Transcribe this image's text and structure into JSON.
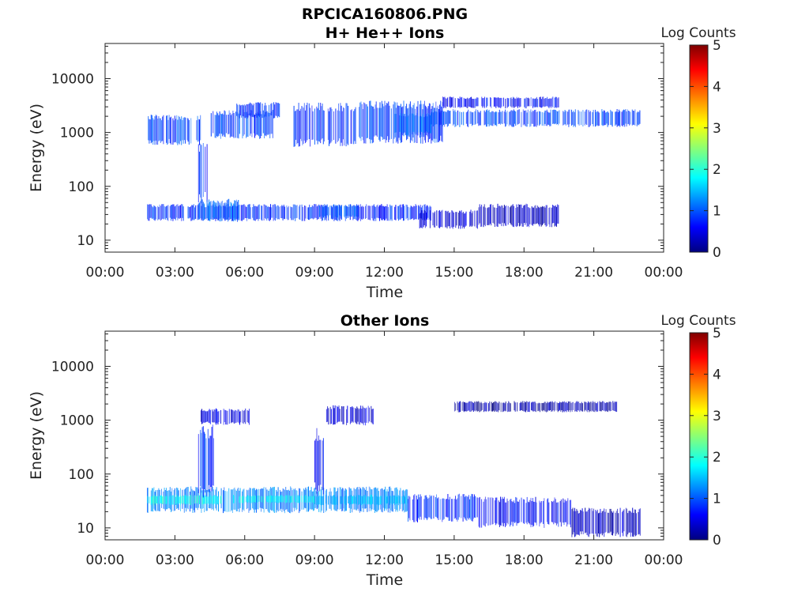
{
  "figure_title": "RPCICA160806.PNG",
  "colors": {
    "axis": "#222222",
    "colormap": [
      "#00007f",
      "#0000ff",
      "#00ffff",
      "#ffff00",
      "#ff0000",
      "#7f0000"
    ]
  },
  "chart_data": [
    {
      "type": "heatmap",
      "title": "H+ He++ Ions",
      "xlabel": "Time",
      "ylabel": "Energy (eV)",
      "yscale": "log",
      "ylim": [
        6,
        45000
      ],
      "xlim": [
        0,
        24
      ],
      "x_ticks": [
        "00:00",
        "03:00",
        "06:00",
        "09:00",
        "12:00",
        "15:00",
        "18:00",
        "21:00",
        "00:00"
      ],
      "y_ticks": [
        "10",
        "100",
        "1000",
        "10000"
      ],
      "colorbar": {
        "label": "Log Counts",
        "range": [
          0,
          5
        ],
        "ticks": [
          "0",
          "1",
          "2",
          "3",
          "4",
          "5"
        ]
      },
      "bands": [
        {
          "t_start": 1.8,
          "t_end": 4.1,
          "e_low": 700,
          "e_high": 2000,
          "log_counts": 0.9
        },
        {
          "t_start": 4.5,
          "t_end": 7.2,
          "e_low": 900,
          "e_high": 2500,
          "log_counts": 0.9
        },
        {
          "t_start": 5.6,
          "t_end": 7.5,
          "e_low": 2000,
          "e_high": 3500,
          "log_counts": 0.8
        },
        {
          "t_start": 8.1,
          "t_end": 10.8,
          "e_low": 700,
          "e_high": 3200,
          "log_counts": 0.8
        },
        {
          "t_start": 10.9,
          "t_end": 14.5,
          "e_low": 800,
          "e_high": 3500,
          "log_counts": 0.9
        },
        {
          "t_start": 12.4,
          "t_end": 14.0,
          "e_low": 1000,
          "e_high": 2200,
          "log_counts": 1.1
        },
        {
          "t_start": 14.0,
          "t_end": 23.0,
          "e_low": 1400,
          "e_high": 2600,
          "log_counts": 0.9
        },
        {
          "t_start": 14.5,
          "t_end": 19.5,
          "e_low": 3000,
          "e_high": 4500,
          "log_counts": 0.6
        },
        {
          "t_start": 4.0,
          "t_end": 4.5,
          "e_low": 70,
          "e_high": 600,
          "log_counts": 0.8
        },
        {
          "t_start": 1.8,
          "t_end": 14.0,
          "e_low": 25,
          "e_high": 45,
          "log_counts": 0.8
        },
        {
          "t_start": 4.0,
          "t_end": 5.8,
          "e_low": 25,
          "e_high": 55,
          "log_counts": 1.1
        },
        {
          "t_start": 9.2,
          "t_end": 10.9,
          "e_low": 28,
          "e_high": 45,
          "log_counts": 1.0
        },
        {
          "t_start": 13.5,
          "t_end": 16.0,
          "e_low": 18,
          "e_high": 35,
          "log_counts": 0.4
        },
        {
          "t_start": 16.0,
          "t_end": 19.5,
          "e_low": 20,
          "e_high": 45,
          "log_counts": 0.3
        }
      ]
    },
    {
      "type": "heatmap",
      "title": "Other Ions",
      "xlabel": "Time",
      "ylabel": "Energy (eV)",
      "yscale": "log",
      "ylim": [
        6,
        45000
      ],
      "xlim": [
        0,
        24
      ],
      "x_ticks": [
        "00:00",
        "03:00",
        "06:00",
        "09:00",
        "12:00",
        "15:00",
        "18:00",
        "21:00",
        "00:00"
      ],
      "y_ticks": [
        "10",
        "100",
        "1000",
        "10000"
      ],
      "colorbar": {
        "label": "Log Counts",
        "range": [
          0,
          5
        ],
        "ticks": [
          "0",
          "1",
          "2",
          "3",
          "4",
          "5"
        ]
      },
      "bands": [
        {
          "t_start": 1.8,
          "t_end": 13.0,
          "e_low": 22,
          "e_high": 55,
          "log_counts": 1.2
        },
        {
          "t_start": 1.8,
          "t_end": 5.0,
          "e_low": 28,
          "e_high": 40,
          "log_counts": 1.9
        },
        {
          "t_start": 5.5,
          "t_end": 9.0,
          "e_low": 30,
          "e_high": 40,
          "log_counts": 1.8
        },
        {
          "t_start": 9.0,
          "t_end": 13.0,
          "e_low": 28,
          "e_high": 40,
          "log_counts": 1.5
        },
        {
          "t_start": 13.0,
          "t_end": 16.0,
          "e_low": 15,
          "e_high": 40,
          "log_counts": 0.8
        },
        {
          "t_start": 16.0,
          "t_end": 20.0,
          "e_low": 12,
          "e_high": 35,
          "log_counts": 0.6
        },
        {
          "t_start": 20.0,
          "t_end": 23.0,
          "e_low": 8,
          "e_high": 22,
          "log_counts": 0.3
        },
        {
          "t_start": 4.0,
          "t_end": 4.7,
          "e_low": 55,
          "e_high": 700,
          "log_counts": 0.8
        },
        {
          "t_start": 4.1,
          "t_end": 6.2,
          "e_low": 900,
          "e_high": 1600,
          "log_counts": 0.5
        },
        {
          "t_start": 9.0,
          "t_end": 9.4,
          "e_low": 60,
          "e_high": 600,
          "log_counts": 0.6
        },
        {
          "t_start": 9.5,
          "t_end": 11.5,
          "e_low": 900,
          "e_high": 1800,
          "log_counts": 0.4
        },
        {
          "t_start": 15.0,
          "t_end": 22.0,
          "e_low": 1500,
          "e_high": 2200,
          "log_counts": 0.2
        }
      ]
    }
  ]
}
